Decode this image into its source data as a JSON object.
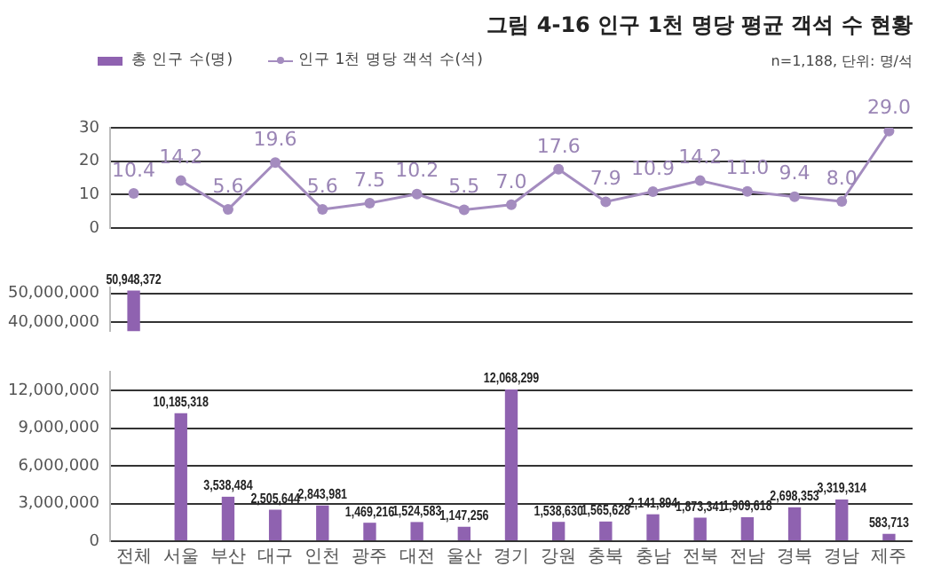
{
  "chart_data": [
    {
      "type": "line",
      "title": "그림 4-16 인구 1천 명당 평균 객석 수 현황",
      "subtitle": "n=1,188, 단위: 명/석",
      "categories": [
        null,
        null,
        null,
        null,
        null,
        null,
        null,
        null,
        null,
        null,
        null,
        null,
        null,
        null,
        null,
        null,
        null
      ],
      "series": [
        {
          "name": "인구 1천 명당 객석 수(석)",
          "color": "#a48cbf",
          "values": [
            null,
            14.2,
            5.6,
            19.6,
            5.6,
            7.5,
            10.2,
            5.5,
            7.0,
            17.6,
            7.9,
            10.9,
            14.2,
            11.0,
            9.4,
            8.0,
            29.0
          ],
          "value_labels": [
            null,
            "14.2",
            "5.6",
            "19.6",
            "5.6",
            "7.5",
            "10.2",
            "5.5",
            "7.0",
            "17.6",
            "7.9",
            "10.9",
            "14.2",
            "11.0",
            "9.4",
            "8.0",
            "29.0"
          ]
        },
        {
          "type": "scatter",
          "color": "#a48cbf",
          "values": [
            10.4,
            null,
            null,
            null,
            null,
            null,
            null,
            null,
            null,
            null,
            null,
            null,
            null,
            null,
            null,
            null,
            null
          ],
          "value_labels": [
            "10.4",
            null,
            null,
            null,
            null,
            null,
            null,
            null,
            null,
            null,
            null,
            null,
            null,
            null,
            null,
            null,
            null
          ]
        }
      ],
      "ylim": [
        0,
        30
      ],
      "yticks": [
        0,
        10,
        20,
        30
      ],
      "grid": "y",
      "marker": "circle",
      "legend": "top left",
      "tick_labels": "y"
    },
    {
      "type": "bar",
      "categories": [
        null,
        null,
        null,
        null,
        null,
        null,
        null,
        null,
        null,
        null,
        null,
        null,
        null,
        null,
        null,
        null,
        null
      ],
      "series": [
        {
          "name": "총 인구 수(명)",
          "color": "#8f62b0",
          "values": [
            50948372,
            null,
            null,
            null,
            null,
            null,
            null,
            null,
            null,
            null,
            null,
            null,
            null,
            null,
            null,
            null,
            null
          ],
          "value_labels": [
            "50,948,372",
            null,
            null,
            null,
            null,
            null,
            null,
            null,
            null,
            null,
            null,
            null,
            null,
            null,
            null,
            null,
            null
          ]
        }
      ],
      "ylim": [
        37000000,
        52000000
      ],
      "yticks": [
        {
          "value": 40000000,
          "label": "40,000,000"
        },
        {
          "value": 50000000,
          "label": "50,000,000"
        }
      ],
      "grid": "y",
      "legend": "top left",
      "tick_labels": "y"
    },
    {
      "type": "bar",
      "categories": [
        "전체",
        "서울",
        "부산",
        "대구",
        "인천",
        "광주",
        "대전",
        "울산",
        "경기",
        "강원",
        "충북",
        "충남",
        "전북",
        "전남",
        "경북",
        "경남",
        "제주"
      ],
      "series": [
        {
          "color": "#8f62b0",
          "values": [
            null,
            10185318,
            3538484,
            2505644,
            2843981,
            1469216,
            1524583,
            1147256,
            12068299,
            1538630,
            1565628,
            2141894,
            1873341,
            1909618,
            2698353,
            3319314,
            583713
          ],
          "value_labels": [
            null,
            "10,185,318",
            "3,538,484",
            "2,505,644",
            "2,843,981",
            "1,469,216",
            "1,524,583",
            "1,147,256",
            "12,068,299",
            "1,538,630",
            "1,565,628",
            "2,141,894",
            "1,873,341",
            "1,909,618",
            "2,698,353",
            "3,319,314",
            "583,713"
          ]
        }
      ],
      "ylim": [
        0,
        13500000
      ],
      "yticks": [
        0,
        {
          "value": 3000000,
          "label": "3,000,000"
        },
        {
          "value": 6000000,
          "label": "6,000,000"
        },
        {
          "value": 9000000,
          "label": "9,000,000"
        },
        {
          "value": 12000000,
          "label": "12,000,000"
        }
      ],
      "grid": "y"
    }
  ]
}
